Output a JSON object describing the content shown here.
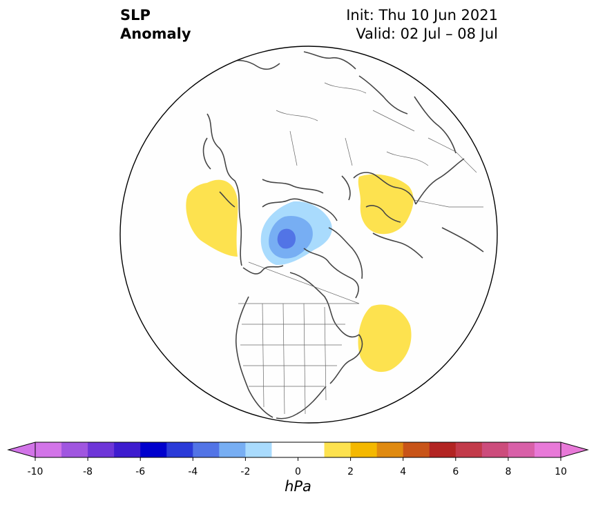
{
  "title": {
    "field_line1": "SLP",
    "field_line2": "Anomaly",
    "init": "Init: Thu 10 Jun 2021",
    "valid": "Valid: 02 Jul – 08 Jul"
  },
  "map": {
    "projection": "north-polar-stereographic",
    "region": "Northern Hemisphere (North America / Arctic)",
    "features": [
      {
        "name": "positive-anomaly-alaska-pacific",
        "level": "1 to 2 hPa",
        "color": "#fde24f"
      },
      {
        "name": "negative-anomaly-canadian-archipelago",
        "level": "-1 to -4 hPa",
        "colors": [
          "#a9dbfd",
          "#77aef3",
          "#5078e6"
        ]
      },
      {
        "name": "positive-anomaly-northern-europe",
        "level": "1 to 2 hPa",
        "color": "#fde24f"
      },
      {
        "name": "positive-anomaly-north-atlantic",
        "level": "1 to 2 hPa",
        "color": "#fde24f"
      }
    ]
  },
  "colorbar": {
    "unit_label": "hPa",
    "tick_labels": [
      "-10",
      "-8",
      "-6",
      "-4",
      "-2",
      "0",
      "2",
      "4",
      "6",
      "8",
      "10"
    ],
    "levels": [
      -10,
      -9,
      -8,
      -7,
      -6,
      -5,
      -4,
      -3,
      -2,
      -1,
      1,
      2,
      3,
      4,
      5,
      6,
      7,
      8,
      9,
      10
    ],
    "colors": [
      "#d274e8",
      "#a056e0",
      "#6e36d8",
      "#3e1ccf",
      "#0000cd",
      "#2a3ad8",
      "#5274e6",
      "#77aef3",
      "#a9dbfd",
      "#ffffff",
      "#fde24f",
      "#f4b800",
      "#e08a10",
      "#c85418",
      "#b22422",
      "#c23a4a",
      "#cc4c7c",
      "#d860a8",
      "#e879d8"
    ],
    "extend_low_color": "#d274e8",
    "extend_high_color": "#e879d8"
  }
}
